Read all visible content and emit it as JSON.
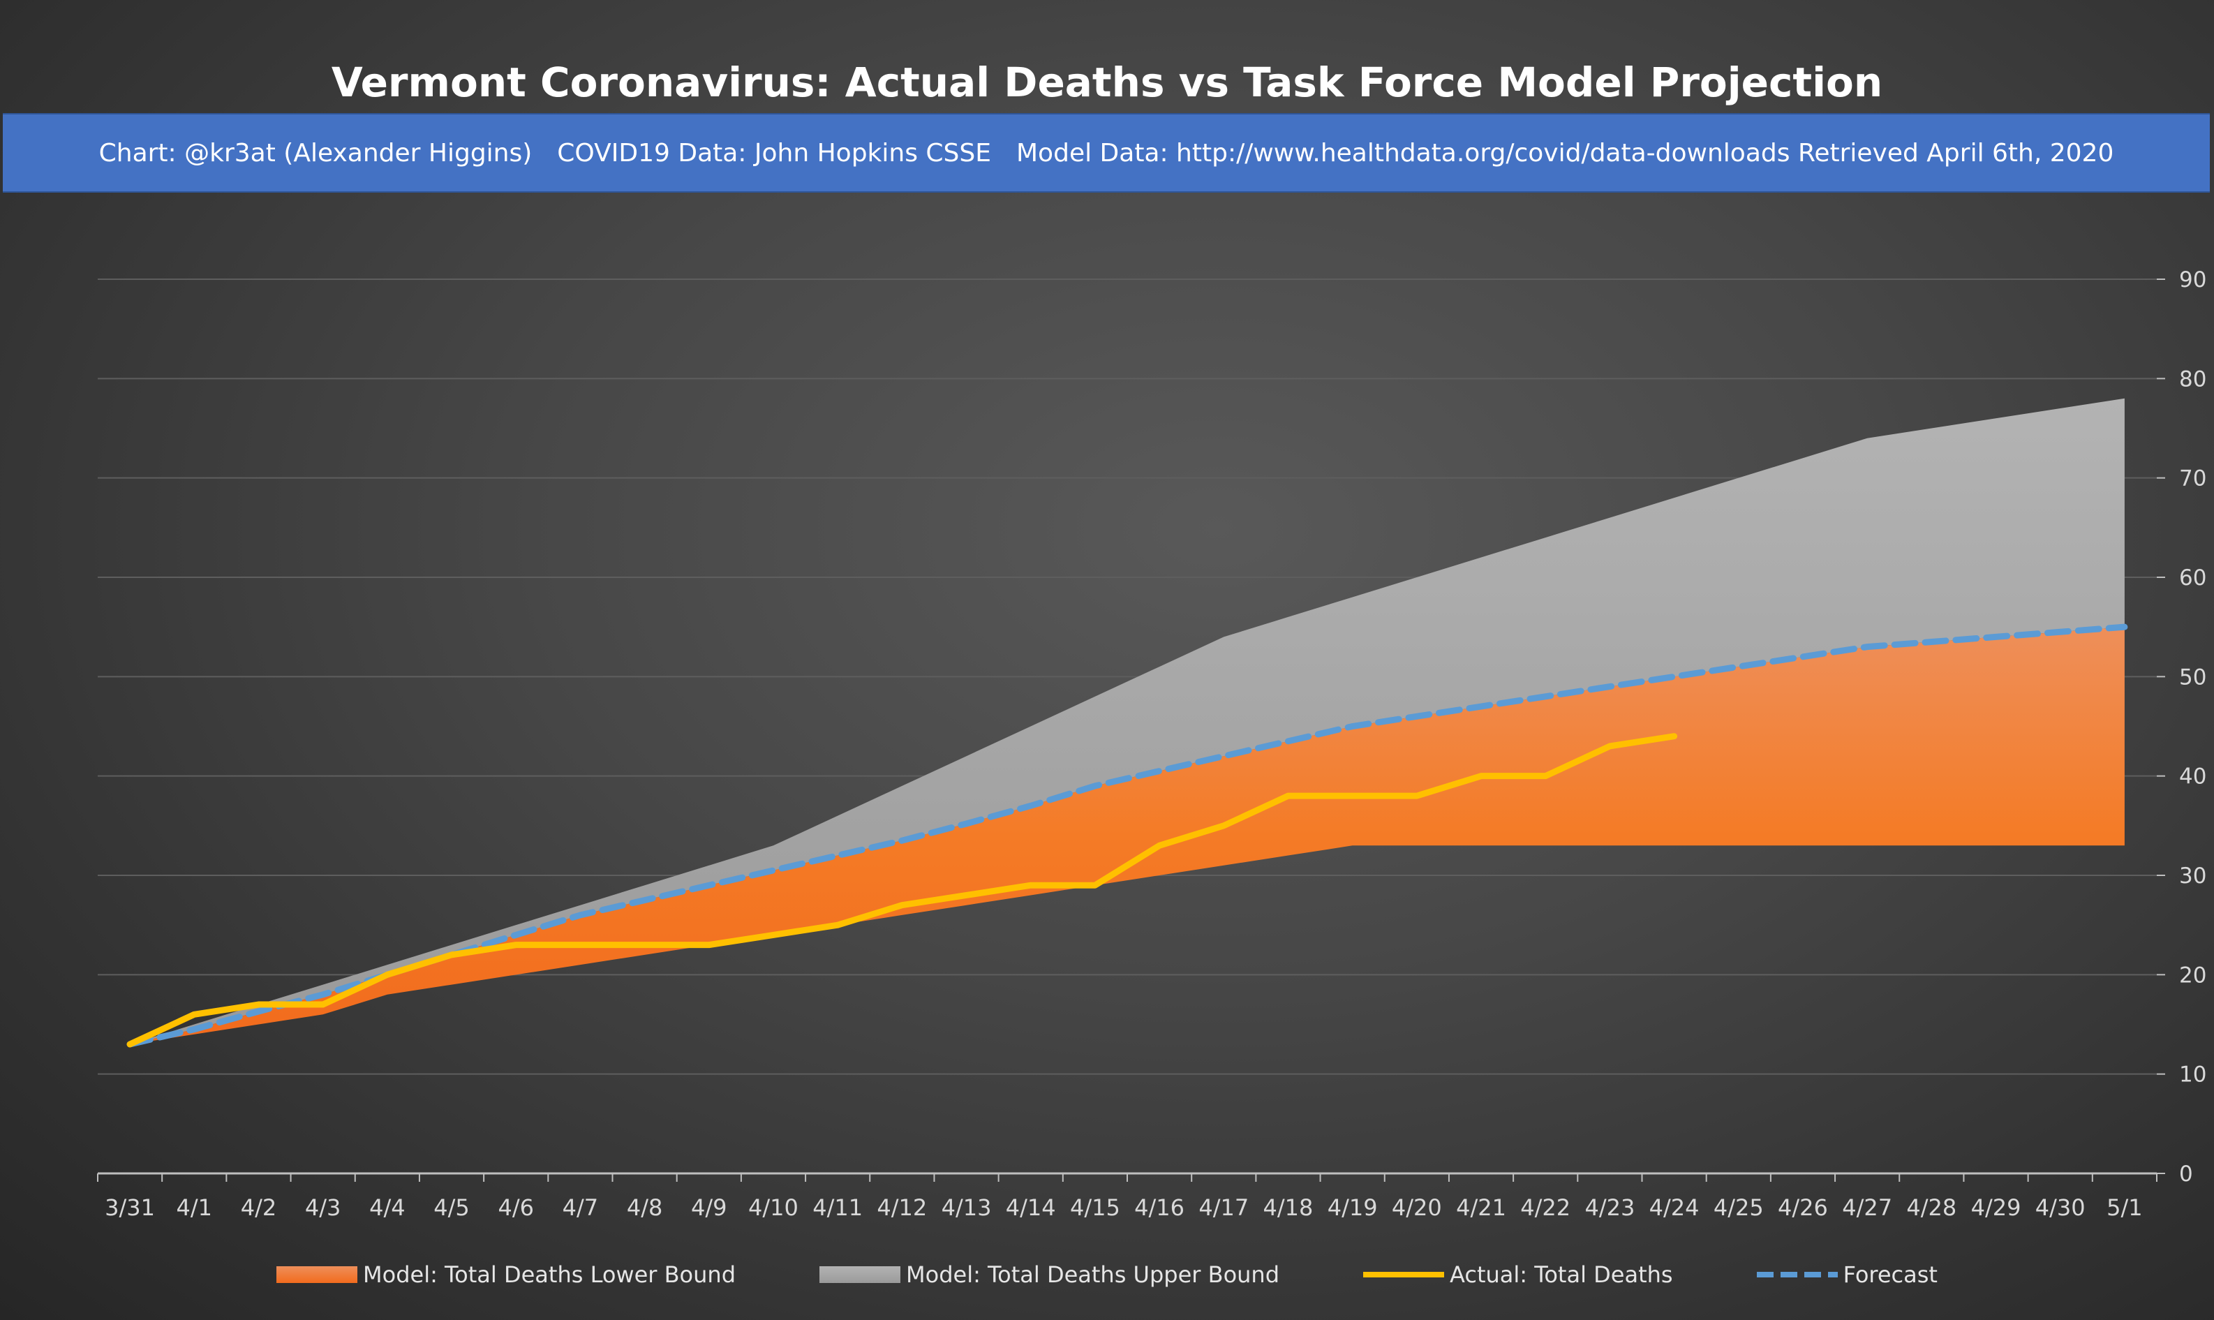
{
  "title": "Vermont Coronavirus: Actual Deaths vs Task Force Model Projection",
  "banner": {
    "chart_credit": "Chart: @kr3at (Alexander Higgins)",
    "covid_data": "COVID19 Data: John Hopkins CSSE",
    "model_data": "Model Data: http://www.healthdata.org/covid/data-downloads Retrieved April 6th, 2020"
  },
  "colors": {
    "lower": "#f47b26",
    "upper": "#a6a6a6",
    "actual": "#ffc000",
    "forecast": "#5b9bd5",
    "banner": "#4472c4"
  },
  "chart_data": {
    "type": "area",
    "title": "Vermont Coronavirus: Actual Deaths vs Task Force Model Projection",
    "xlabel": "",
    "ylabel": "",
    "ylim": [
      0,
      90
    ],
    "yticks": [
      0,
      10,
      20,
      30,
      40,
      50,
      60,
      70,
      80,
      90
    ],
    "grid": true,
    "legend_position": "bottom",
    "categories": [
      "3/31",
      "4/1",
      "4/2",
      "4/3",
      "4/4",
      "4/5",
      "4/6",
      "4/7",
      "4/8",
      "4/9",
      "4/10",
      "4/11",
      "4/12",
      "4/13",
      "4/14",
      "4/15",
      "4/16",
      "4/17",
      "4/18",
      "4/19",
      "4/20",
      "4/21",
      "4/22",
      "4/23",
      "4/24",
      "4/25",
      "4/26",
      "4/27",
      "4/28",
      "4/29",
      "4/30",
      "5/1"
    ],
    "series": [
      {
        "name": "Model: Total Deaths Lower Bound",
        "type": "area",
        "values": [
          13,
          14,
          15,
          16,
          18,
          19,
          20,
          21,
          22,
          23,
          24,
          25,
          26,
          27,
          28,
          29,
          30,
          31,
          32,
          33,
          33,
          33,
          33,
          33,
          33,
          33,
          33,
          33,
          33,
          33,
          33,
          33
        ]
      },
      {
        "name": "Model: Total Deaths Upper Bound",
        "type": "area",
        "values": [
          13,
          15,
          17,
          19,
          21,
          23,
          25,
          27,
          29,
          31,
          33,
          36,
          39,
          42,
          45,
          48,
          51,
          54,
          56,
          58,
          60,
          62,
          64,
          66,
          68,
          70,
          72,
          74,
          75,
          76,
          77,
          78
        ]
      },
      {
        "name": "Actual: Total Deaths",
        "type": "line",
        "values": [
          13,
          16,
          17,
          17,
          20,
          22,
          23,
          23,
          23,
          23,
          24,
          25,
          27,
          28,
          29,
          29,
          33,
          35,
          38,
          38,
          38,
          40,
          40,
          43,
          44,
          null,
          null,
          null,
          null,
          null,
          null,
          null
        ]
      },
      {
        "name": "Forecast",
        "type": "dashed-line",
        "values": [
          13,
          14.5,
          16.3,
          18,
          20,
          22,
          24,
          26,
          27.5,
          29,
          30.5,
          32,
          33.5,
          35.2,
          37,
          39,
          40.5,
          42,
          43.5,
          45,
          46,
          47,
          48,
          49,
          50,
          51,
          52,
          53,
          53.5,
          54,
          54.5,
          55
        ]
      }
    ]
  }
}
